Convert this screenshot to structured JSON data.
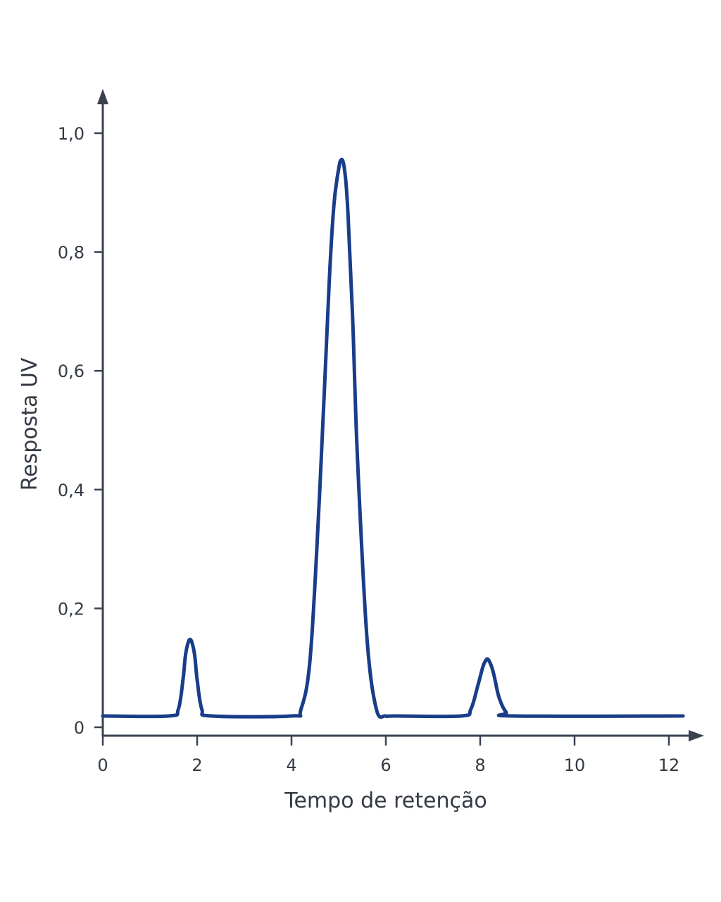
{
  "chart_data": {
    "type": "line",
    "title": "",
    "xlabel": "Tempo de retenção",
    "ylabel": "Resposta UV",
    "xlim": [
      0,
      12.3
    ],
    "ylim": [
      0,
      1.0
    ],
    "x_ticks": [
      0,
      2,
      4,
      6,
      8,
      10,
      12
    ],
    "x_tick_labels": [
      "0",
      "2",
      "4",
      "6",
      "8",
      "10",
      "12"
    ],
    "y_ticks": [
      0,
      0.2,
      0.4,
      0.6,
      0.8,
      1.0
    ],
    "y_tick_labels": [
      "0",
      "0,2",
      "0,4",
      "0,6",
      "0,8",
      "1,0"
    ],
    "grid": false,
    "legend": "none",
    "line_color": "#1a3d8a",
    "axis_color": "#3a4250",
    "series": [
      {
        "x": [
          0,
          1.4,
          1.6,
          1.7,
          1.75,
          1.8,
          1.85,
          1.9,
          1.95,
          2.0,
          2.1,
          2.3,
          4.0,
          4.2,
          4.4,
          4.6,
          4.8,
          4.9,
          5.0,
          5.05,
          5.1,
          5.15,
          5.2,
          5.3,
          5.4,
          5.6,
          5.8,
          6.0,
          6.2,
          7.6,
          7.8,
          7.95,
          8.05,
          8.1,
          8.15,
          8.2,
          8.25,
          8.3,
          8.4,
          8.55,
          8.7,
          12.3
        ],
        "y": [
          0.019,
          0.019,
          0.03,
          0.08,
          0.12,
          0.14,
          0.148,
          0.14,
          0.12,
          0.08,
          0.03,
          0.019,
          0.019,
          0.03,
          0.12,
          0.4,
          0.75,
          0.88,
          0.94,
          0.955,
          0.95,
          0.92,
          0.86,
          0.68,
          0.45,
          0.15,
          0.03,
          0.019,
          0.019,
          0.019,
          0.03,
          0.07,
          0.1,
          0.11,
          0.115,
          0.11,
          0.1,
          0.085,
          0.05,
          0.025,
          0.019,
          0.019
        ]
      }
    ]
  }
}
